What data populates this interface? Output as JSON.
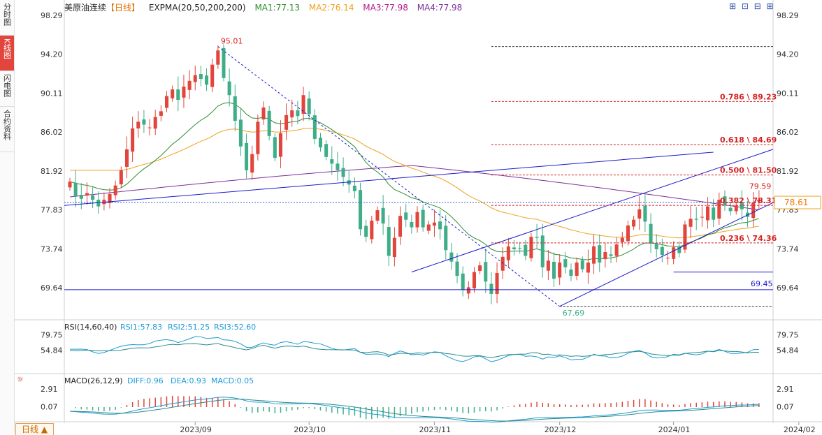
{
  "sidebar": {
    "tabs": [
      {
        "label": "分时图",
        "active": false
      },
      {
        "label": "K线图",
        "active": true
      },
      {
        "label": "闪电图",
        "active": false
      },
      {
        "label": "合约资料",
        "active": false
      }
    ]
  },
  "header": {
    "symbol": "美原油连续",
    "period": "【日线】",
    "indicator": "EXPMA(20,50,200,200)",
    "ma1": "MA1:77.13",
    "ma2": "MA2:76.14",
    "ma3": "MA3:77.98",
    "ma4": "MA4:77.98"
  },
  "toolbar": {
    "icons": "⊞ ⊡ ⊟ ⊞"
  },
  "bottom_tab": {
    "label": "日线 ▲"
  },
  "colors": {
    "up": "#e2453c",
    "down": "#3fae88",
    "ma1": "#2e8b2e",
    "ma2": "#f0a020",
    "ma3": "#7b2f9a",
    "line": "#1a1acc",
    "fib": "#d62020"
  },
  "chart_data": {
    "type": "candlestick",
    "title": "美原油连续【日线】",
    "price_axis_ticks": [
      "98.29",
      "94.20",
      "90.11",
      "86.02",
      "81.92",
      "77.83",
      "73.74",
      "69.64"
    ],
    "price_range": [
      66.5,
      98.8
    ],
    "date_labels": [
      {
        "label": "2023/09",
        "idx": 22
      },
      {
        "label": "2023/10",
        "idx": 42
      },
      {
        "label": "2023/11",
        "idx": 64
      },
      {
        "label": "2023/12",
        "idx": 86
      },
      {
        "label": "2024/01",
        "idx": 106
      },
      {
        "label": "2024/02",
        "idx": 128
      }
    ],
    "current_price": "78.61",
    "annotations": {
      "high": "95.01",
      "low": "67.69",
      "recent_high": "79.59",
      "support": "69.45"
    },
    "fib_levels": [
      {
        "label": "0.786 \\ 89.23",
        "value": 89.23
      },
      {
        "label": "0.618 \\ 84.69",
        "value": 84.69
      },
      {
        "label": "0.500 \\ 81.50",
        "value": 81.5
      },
      {
        "label": "0.382 \\ 78.31",
        "value": 78.31
      },
      {
        "label": "0.236 \\ 74.36",
        "value": 74.36
      }
    ],
    "rsi": {
      "label": "RSI(14,60,40)",
      "rsi1": "RSI1:57.83",
      "rsi2": "RSI2:51.25",
      "rsi3": "RSI3:52.60",
      "ticks": [
        "79.75",
        "54.84"
      ]
    },
    "macd": {
      "label": "MACD(26,12,9)",
      "diff": "DIFF:0.96",
      "dea": "DEA:0.93",
      "macd": "MACD:0.05",
      "ticks": [
        "2.91",
        "0.07"
      ]
    },
    "closes": [
      80.8,
      79.3,
      79.0,
      79.6,
      78.9,
      78.2,
      78.9,
      79.5,
      80.4,
      82.0,
      84.2,
      86.4,
      87.1,
      86.8,
      86.5,
      87.6,
      88.2,
      89.8,
      90.5,
      89.4,
      90.8,
      91.4,
      92.0,
      91.6,
      91.0,
      93.1,
      94.6,
      91.7,
      89.9,
      87.2,
      84.5,
      82.0,
      83.7,
      87.1,
      88.6,
      85.6,
      83.3,
      85.9,
      87.8,
      88.3,
      87.7,
      89.9,
      87.9,
      85.3,
      84.4,
      83.4,
      82.7,
      82.0,
      81.3,
      80.5,
      79.8,
      75.8,
      75.0,
      76.7,
      77.8,
      76.4,
      73.0,
      74.9,
      77.2,
      76.8,
      76.0,
      77.6,
      76.0,
      76.3,
      76.5,
      75.8,
      73.6,
      72.4,
      70.9,
      69.4,
      69.7,
      71.3,
      72.0,
      70.3,
      69.0,
      71.2,
      72.9,
      74.0,
      73.7,
      73.8,
      73.0,
      75.0,
      74.9,
      71.8,
      72.5,
      70.6,
      72.3,
      71.8,
      70.9,
      72.3,
      71.6,
      72.3,
      74.0,
      72.3,
      73.4,
      73.0,
      74.2,
      74.9,
      76.2,
      76.8,
      77.9,
      76.6,
      74.3,
      73.7,
      73.1,
      72.8,
      73.9,
      73.3,
      76.3,
      76.9,
      76.8,
      77.1,
      78.2,
      76.8,
      78.9,
      78.3,
      77.7,
      78.3,
      77.9,
      77.1,
      78.6,
      78.9
    ]
  }
}
